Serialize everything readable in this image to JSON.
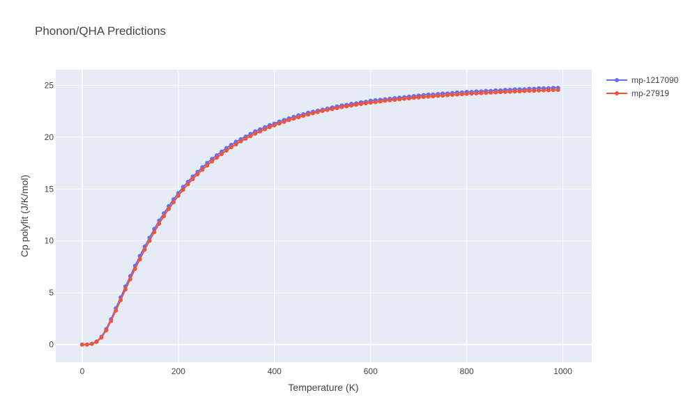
{
  "chart_data": {
    "type": "line",
    "title": "Phonon/QHA Predictions",
    "xlabel": "Temperature (K)",
    "ylabel": "Cp polyfit (J/K/mol)",
    "xlim": [
      -55,
      1060
    ],
    "ylim": [
      -1.7,
      26.5
    ],
    "xticks": [
      0,
      200,
      400,
      600,
      800,
      1000
    ],
    "yticks": [
      0,
      5,
      10,
      15,
      20,
      25
    ],
    "grid": true,
    "legend_position": "top-right",
    "x": [
      0,
      10,
      20,
      30,
      40,
      50,
      60,
      70,
      80,
      90,
      100,
      110,
      120,
      130,
      140,
      150,
      160,
      170,
      180,
      190,
      200,
      210,
      220,
      230,
      240,
      250,
      260,
      270,
      280,
      290,
      300,
      310,
      320,
      330,
      340,
      350,
      360,
      370,
      380,
      390,
      400,
      410,
      420,
      430,
      440,
      450,
      460,
      470,
      480,
      490,
      500,
      510,
      520,
      530,
      540,
      550,
      560,
      570,
      580,
      590,
      600,
      610,
      620,
      630,
      640,
      650,
      660,
      670,
      680,
      690,
      700,
      710,
      720,
      730,
      740,
      750,
      760,
      770,
      780,
      790,
      800,
      810,
      820,
      830,
      840,
      850,
      860,
      870,
      880,
      890,
      900,
      910,
      920,
      930,
      940,
      950,
      960,
      970,
      980,
      990
    ],
    "series": [
      {
        "name": "mp-1217090",
        "color": "#636efa",
        "values": [
          0.0,
          0.0,
          0.09,
          0.3,
          0.76,
          1.5,
          2.45,
          3.5,
          4.55,
          5.6,
          6.6,
          7.6,
          8.55,
          9.45,
          10.3,
          11.15,
          11.95,
          12.65,
          13.35,
          14.0,
          14.6,
          15.2,
          15.7,
          16.2,
          16.65,
          17.1,
          17.5,
          17.9,
          18.25,
          18.6,
          18.95,
          19.25,
          19.55,
          19.8,
          20.05,
          20.3,
          20.55,
          20.75,
          20.95,
          21.15,
          21.3,
          21.5,
          21.65,
          21.8,
          21.95,
          22.1,
          22.2,
          22.35,
          22.45,
          22.55,
          22.65,
          22.75,
          22.85,
          22.95,
          23.05,
          23.1,
          23.2,
          23.25,
          23.35,
          23.4,
          23.5,
          23.55,
          23.6,
          23.65,
          23.7,
          23.75,
          23.8,
          23.85,
          23.9,
          23.95,
          24.0,
          24.05,
          24.1,
          24.1,
          24.15,
          24.2,
          24.2,
          24.25,
          24.3,
          24.3,
          24.35,
          24.35,
          24.4,
          24.4,
          24.45,
          24.45,
          24.5,
          24.5,
          24.55,
          24.55,
          24.6,
          24.6,
          24.6,
          24.65,
          24.65,
          24.7,
          24.7,
          24.7,
          24.75,
          24.75
        ]
      },
      {
        "name": "mp-27919",
        "color": "#ef553b",
        "values": [
          0.0,
          0.0,
          0.07,
          0.26,
          0.68,
          1.38,
          2.28,
          3.28,
          4.28,
          5.32,
          6.3,
          7.3,
          8.23,
          9.15,
          10.0,
          10.85,
          11.65,
          12.38,
          13.08,
          13.72,
          14.35,
          14.93,
          15.46,
          15.96,
          16.42,
          16.86,
          17.27,
          17.66,
          18.02,
          18.37,
          18.7,
          19.02,
          19.31,
          19.59,
          19.85,
          20.1,
          20.33,
          20.55,
          20.76,
          20.96,
          21.14,
          21.32,
          21.48,
          21.64,
          21.78,
          21.92,
          22.05,
          22.18,
          22.3,
          22.41,
          22.52,
          22.62,
          22.71,
          22.8,
          22.89,
          22.97,
          23.05,
          23.12,
          23.19,
          23.26,
          23.32,
          23.38,
          23.44,
          23.5,
          23.55,
          23.6,
          23.65,
          23.7,
          23.74,
          23.79,
          23.83,
          23.87,
          23.91,
          23.94,
          23.98,
          24.01,
          24.05,
          24.08,
          24.11,
          24.14,
          24.17,
          24.19,
          24.22,
          24.24,
          24.27,
          24.29,
          24.31,
          24.34,
          24.36,
          24.38,
          24.4,
          24.42,
          24.44,
          24.46,
          24.47,
          24.49,
          24.51,
          24.52,
          24.54,
          24.55
        ]
      }
    ]
  }
}
